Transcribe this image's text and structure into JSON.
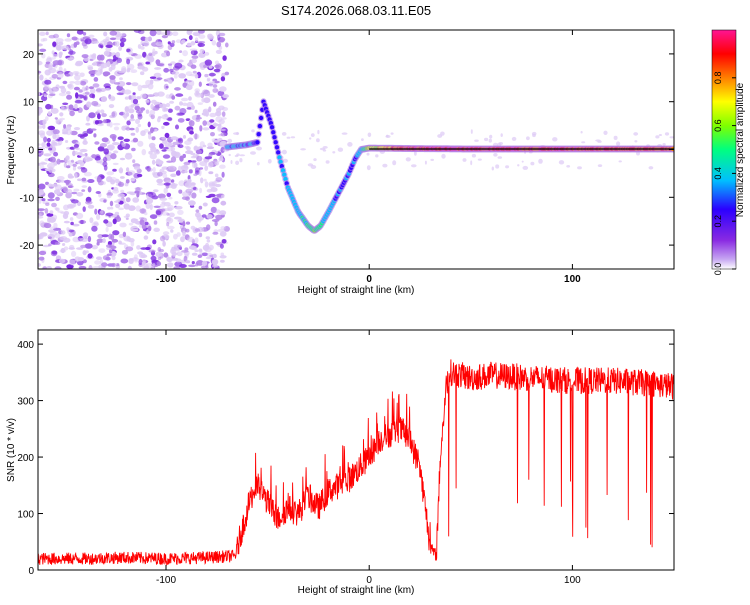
{
  "title": "S174.2026.068.03.11.E05",
  "colorbar": {
    "label": "Normalized spectral amplitude",
    "ticks": [
      "0.0",
      "0.2",
      "0.4",
      "0.6",
      "0.8"
    ],
    "tick_values": [
      0.0,
      0.2,
      0.4,
      0.6,
      0.8
    ],
    "range": [
      0,
      1
    ],
    "colors": [
      "#ffffff",
      "#c7a8f2",
      "#8a2be2",
      "#2b00ff",
      "#00bfff",
      "#00ff7f",
      "#7fff00",
      "#ffff00",
      "#ff7f00",
      "#ff0000",
      "#ff1493"
    ]
  },
  "chart_data": [
    {
      "type": "heatmap",
      "title": "S174.2026.068.03.11.E05",
      "xlabel": "Height of straight line (km)",
      "ylabel": "Frequency (Hz)",
      "xlim": [
        -163,
        150
      ],
      "ylim": [
        -25,
        25
      ],
      "xticks": [
        -100,
        0,
        100
      ],
      "yticks": [
        -20,
        -10,
        0,
        10,
        20
      ],
      "grid": false,
      "description_curve": {
        "x": [
          -70,
          -60,
          -55,
          -52,
          -48,
          -44,
          -40,
          -35,
          -30,
          -27,
          -24,
          -20,
          -15,
          -10,
          -7,
          -4,
          0,
          20,
          50,
          100,
          150
        ],
        "y": [
          0.5,
          1,
          1.5,
          10,
          5,
          -2,
          -8,
          -13,
          -16,
          -17,
          -16,
          -13,
          -9,
          -5,
          -2,
          0,
          0.3,
          0.2,
          0.1,
          0.1,
          0.1
        ],
        "amplitude": [
          0.35,
          0.3,
          0.3,
          0.25,
          0.25,
          0.3,
          0.35,
          0.35,
          0.45,
          0.5,
          0.45,
          0.35,
          0.3,
          0.3,
          0.3,
          0.4,
          0.6,
          0.9,
          0.9,
          0.85,
          0.8
        ]
      },
      "noise_region_x": [
        -163,
        -70
      ],
      "noise_amplitude": 0.1
    },
    {
      "type": "line",
      "title": "",
      "xlabel": "Height of straight line (km)",
      "ylabel": "SNR (10 * v/v)",
      "xlim": [
        -163,
        150
      ],
      "ylim": [
        0,
        425
      ],
      "xticks": [
        -100,
        0,
        100
      ],
      "yticks": [
        0,
        100,
        200,
        300,
        400
      ],
      "grid": false,
      "series": [
        {
          "name": "SNR",
          "color": "#ff0000",
          "envelope": {
            "x": [
              -163,
              -140,
              -120,
              -100,
              -80,
              -66,
              -62,
              -58,
              -55,
              -50,
              -45,
              -40,
              -35,
              -30,
              -25,
              -20,
              -15,
              -10,
              -5,
              0,
              5,
              10,
              15,
              20,
              25,
              28,
              30,
              33,
              35,
              38,
              40,
              45,
              50,
              60,
              80,
              100,
              120,
              140,
              150
            ],
            "y": [
              20,
              20,
              22,
              20,
              22,
              25,
              80,
              130,
              150,
              120,
              90,
              110,
              100,
              130,
              110,
              140,
              150,
              160,
              180,
              200,
              230,
              240,
              250,
              230,
              180,
              100,
              40,
              25,
              200,
              330,
              350,
              345,
              340,
              345,
              340,
              335,
              335,
              330,
              325
            ]
          },
          "spike_amplitude": 30
        }
      ]
    }
  ]
}
